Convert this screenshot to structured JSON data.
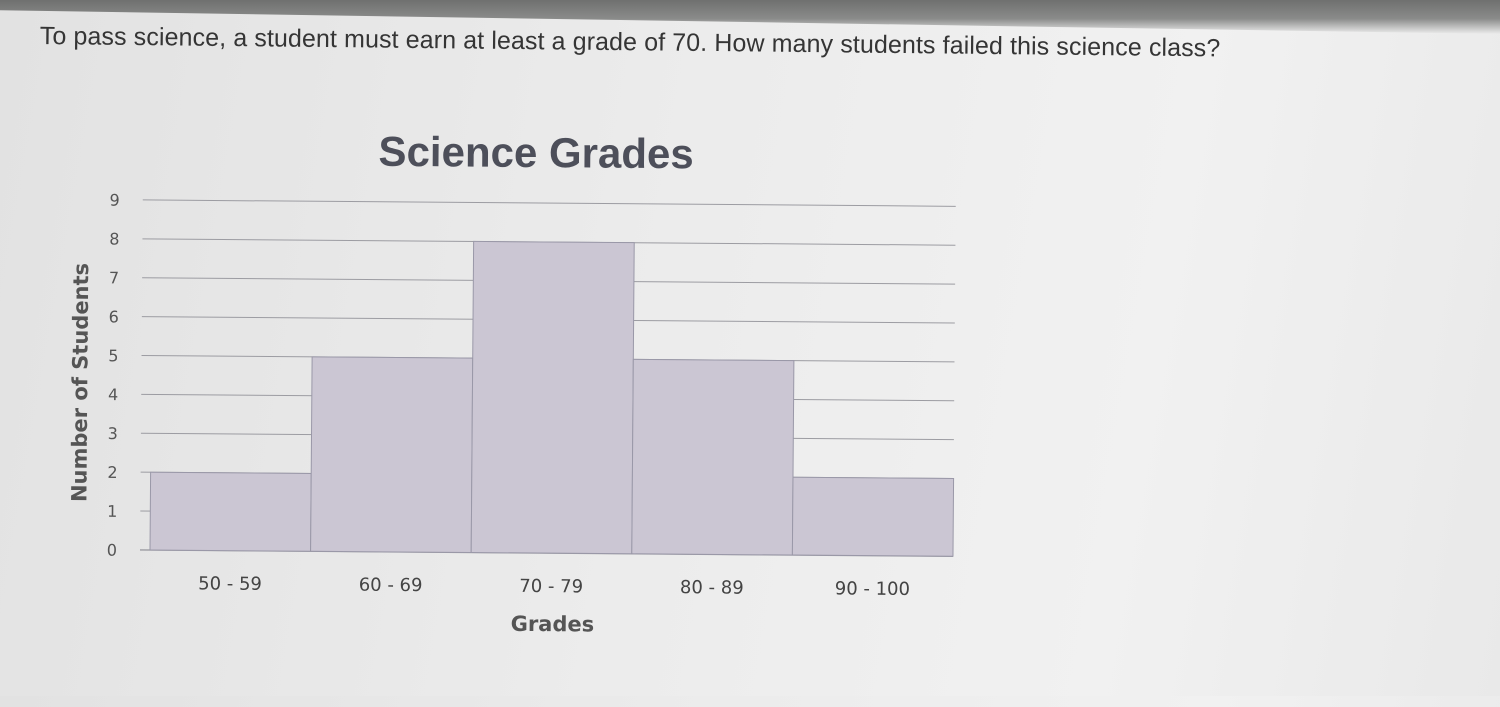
{
  "question": {
    "text": "To pass science, a student must earn at least a grade of 70. How many students failed this science class?"
  },
  "chart_data": {
    "type": "bar",
    "title": "Science Grades",
    "xlabel": "Grades",
    "ylabel": "Number of Students",
    "categories": [
      "50 - 59",
      "60 - 69",
      "70 - 79",
      "80 - 89",
      "90 - 100"
    ],
    "values": [
      2,
      5,
      8,
      5,
      2
    ],
    "ylim": [
      0,
      9
    ],
    "yticks": [
      0,
      1,
      2,
      3,
      4,
      5,
      6,
      7,
      8,
      9
    ],
    "grid": true,
    "legend": "none",
    "colors": {
      "bar_fill": "#cbc6d3",
      "bar_stroke": "#9a98a8",
      "grid": "#9c9ca2"
    }
  }
}
